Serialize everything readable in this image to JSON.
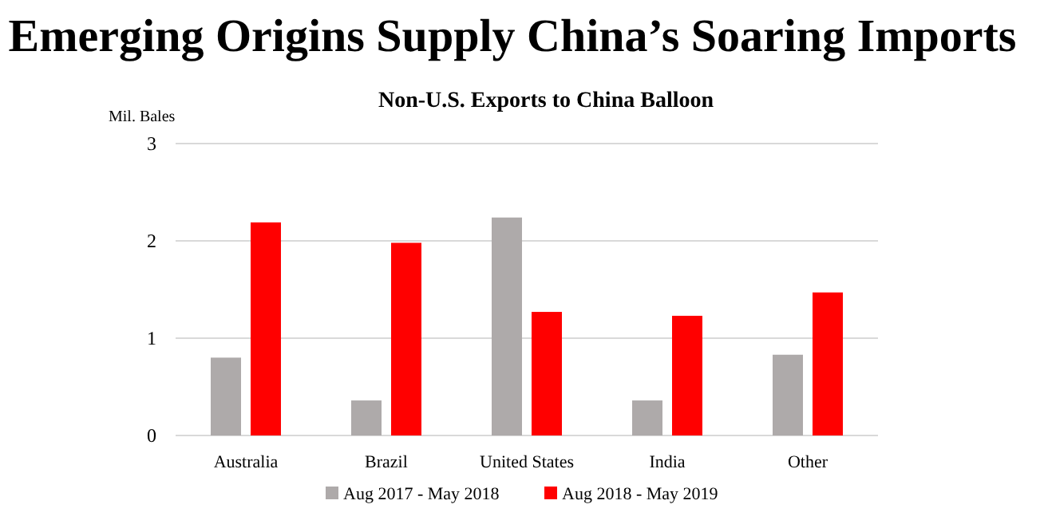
{
  "chart_data": {
    "type": "bar",
    "title": "Emerging Origins Supply China’s Soaring Imports",
    "subtitle": "Non-U.S. Exports to China Balloon",
    "ylabel": "Mil. Bales",
    "categories": [
      "Australia",
      "Brazil",
      "United States",
      "India",
      "Other"
    ],
    "series": [
      {
        "name": "Aug 2017 - May 2018",
        "color": "#aeaaaa",
        "values": [
          0.8,
          0.36,
          2.24,
          0.36,
          0.83
        ]
      },
      {
        "name": "Aug 2018 - May 2019",
        "color": "#ff0000",
        "values": [
          2.19,
          1.98,
          1.27,
          1.23,
          1.47
        ]
      }
    ],
    "ylim": [
      0,
      3
    ],
    "yticks": [
      0,
      1,
      2,
      3
    ],
    "grid": "y",
    "legend": "bottom"
  }
}
